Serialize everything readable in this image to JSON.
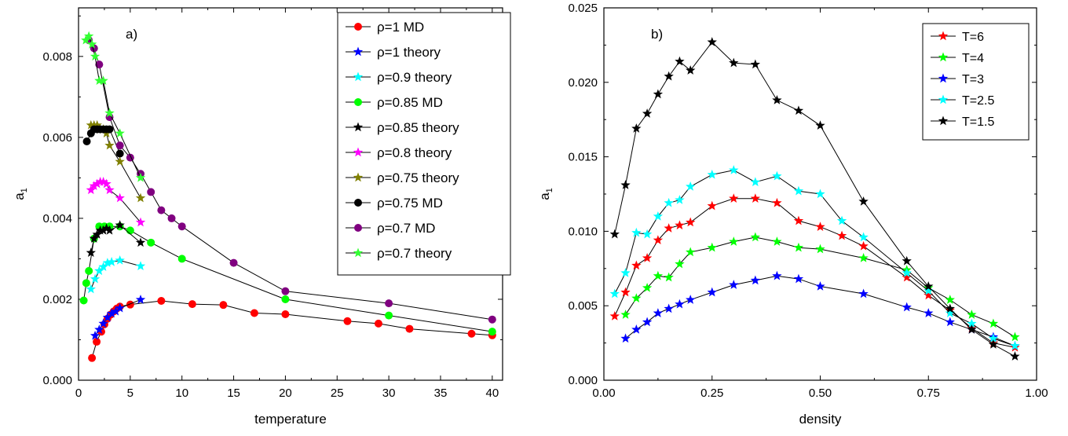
{
  "chart_data": [
    {
      "type": "line",
      "panel_label": "a)",
      "xlabel": "temperature",
      "ylabel_main": "a",
      "ylabel_sub": "1",
      "xlim": [
        0,
        41
      ],
      "ylim": [
        0,
        0.0092
      ],
      "xticks": [
        0,
        5,
        10,
        15,
        20,
        25,
        30,
        35,
        40
      ],
      "xtick_labels": [
        "0",
        "5",
        "10",
        "15",
        "20",
        "25",
        "30",
        "35",
        "40"
      ],
      "yticks": [
        0,
        0.002,
        0.004,
        0.006,
        0.008
      ],
      "ytick_labels": [
        "0.000",
        "0.002",
        "0.004",
        "0.006",
        "0.008"
      ],
      "legend_position": "top-right",
      "series": [
        {
          "name": "ρ=1 MD",
          "color": "#ff0000",
          "marker": "circle",
          "x": [
            1.3,
            1.75,
            2.2,
            2.5,
            2.8,
            3.1,
            3.4,
            3.7,
            4.0,
            5.0,
            8.0,
            11.0,
            14.0,
            17.0,
            20.0,
            26.0,
            29.0,
            32.0,
            38.0,
            40.0
          ],
          "y": [
            0.00055,
            0.00095,
            0.0012,
            0.00138,
            0.00152,
            0.00162,
            0.0017,
            0.00177,
            0.00182,
            0.00187,
            0.00196,
            0.00188,
            0.00186,
            0.00166,
            0.00163,
            0.00146,
            0.0014,
            0.00127,
            0.00115,
            0.00111
          ]
        },
        {
          "name": "ρ=1 theory",
          "color": "#0000ff",
          "marker": "star",
          "x": [
            1.6,
            2.0,
            2.4,
            2.8,
            3.2,
            3.6,
            4.0,
            6.0
          ],
          "y": [
            0.0011,
            0.00125,
            0.0014,
            0.00155,
            0.00165,
            0.0017,
            0.00178,
            0.00199
          ]
        },
        {
          "name": "ρ=0.9 theory",
          "color": "#00ffff",
          "marker": "star",
          "x": [
            1.2,
            1.6,
            2.0,
            2.4,
            2.8,
            3.2,
            4.0,
            6.0
          ],
          "y": [
            0.00225,
            0.0025,
            0.0027,
            0.0028,
            0.0029,
            0.00292,
            0.00296,
            0.00282
          ]
        },
        {
          "name": "ρ=0.85 MD",
          "color": "#00ff00",
          "marker": "circle",
          "x": [
            0.5,
            0.75,
            1.0,
            1.5,
            2.0,
            2.5,
            3.0,
            4.0,
            5.0,
            7.0,
            10.0,
            20.0,
            30.0,
            40.0
          ],
          "y": [
            0.00197,
            0.0024,
            0.0027,
            0.0035,
            0.0038,
            0.0038,
            0.0038,
            0.0038,
            0.0037,
            0.0034,
            0.003,
            0.002,
            0.0016,
            0.0012
          ]
        },
        {
          "name": "ρ=0.85 theory",
          "color": "#000000",
          "marker": "star",
          "x": [
            1.2,
            1.5,
            1.8,
            2.1,
            2.4,
            2.7,
            3.0,
            4.0,
            6.0
          ],
          "y": [
            0.00315,
            0.0035,
            0.0036,
            0.0037,
            0.0037,
            0.00375,
            0.0037,
            0.00383,
            0.0034
          ]
        },
        {
          "name": "ρ=0.8 theory",
          "color": "#ff00ff",
          "marker": "star",
          "x": [
            1.2,
            1.5,
            1.8,
            2.1,
            2.4,
            2.7,
            3.0,
            4.0,
            6.0
          ],
          "y": [
            0.0047,
            0.0048,
            0.00485,
            0.0049,
            0.0049,
            0.00485,
            0.0047,
            0.0045,
            0.0039
          ]
        },
        {
          "name": "ρ=0.75 theory",
          "color": "#808000",
          "marker": "star",
          "x": [
            1.2,
            1.5,
            1.8,
            2.1,
            2.4,
            2.7,
            3.0,
            4.0,
            6.0
          ],
          "y": [
            0.0063,
            0.0063,
            0.0063,
            0.0062,
            0.0062,
            0.0061,
            0.0058,
            0.0054,
            0.0045
          ]
        },
        {
          "name": "ρ=0.75 MD",
          "color": "#000000",
          "marker": "circle",
          "x": [
            0.8,
            1.2,
            1.5,
            1.8,
            2.1,
            2.4,
            2.7,
            3.0,
            4.0
          ],
          "y": [
            0.0059,
            0.0061,
            0.0062,
            0.0062,
            0.0062,
            0.0062,
            0.0062,
            0.0062,
            0.0056
          ]
        },
        {
          "name": "ρ=0.7 MD",
          "color": "#800080",
          "marker": "circle",
          "x": [
            1.0,
            1.5,
            2.0,
            3.0,
            4.0,
            5.0,
            6.0,
            7.0,
            8.0,
            9.0,
            10.0,
            15.0,
            20.0,
            30.0,
            40.0
          ],
          "y": [
            0.0084,
            0.0082,
            0.0078,
            0.0065,
            0.0058,
            0.0055,
            0.0051,
            0.00465,
            0.0042,
            0.004,
            0.0038,
            0.0029,
            0.0022,
            0.0019,
            0.0015
          ]
        },
        {
          "name": "ρ=0.7 theory",
          "color": "#33ff33",
          "marker": "star",
          "x": [
            0.7,
            1.0,
            1.3,
            1.6,
            2.0,
            2.4,
            3.0,
            4.0,
            6.0
          ],
          "y": [
            0.0084,
            0.0085,
            0.0083,
            0.008,
            0.0074,
            0.0074,
            0.0066,
            0.0061,
            0.005
          ]
        }
      ]
    },
    {
      "type": "line",
      "panel_label": "b)",
      "xlabel": "density",
      "ylabel_main": "a",
      "ylabel_sub": "1",
      "xlim": [
        0,
        1.0
      ],
      "ylim": [
        0,
        0.025
      ],
      "xticks": [
        0,
        0.25,
        0.5,
        0.75,
        1.0
      ],
      "xtick_labels": [
        "0.00",
        "0.25",
        "0.50",
        "0.75",
        "1.00"
      ],
      "yticks": [
        0,
        0.005,
        0.01,
        0.015,
        0.02,
        0.025
      ],
      "ytick_labels": [
        "0.000",
        "0.005",
        "0.010",
        "0.015",
        "0.020",
        "0.025"
      ],
      "legend_position": "top-right",
      "series": [
        {
          "name": "T=6",
          "color": "#ff0000",
          "marker": "star",
          "x": [
            0.025,
            0.05,
            0.075,
            0.1,
            0.125,
            0.15,
            0.175,
            0.2,
            0.25,
            0.3,
            0.35,
            0.4,
            0.45,
            0.5,
            0.55,
            0.6,
            0.7,
            0.75,
            0.8,
            0.85,
            0.9,
            0.95
          ],
          "y": [
            0.0043,
            0.0059,
            0.0077,
            0.0082,
            0.0094,
            0.0102,
            0.0104,
            0.0106,
            0.0117,
            0.0122,
            0.0122,
            0.0119,
            0.0107,
            0.0103,
            0.0097,
            0.009,
            0.0069,
            0.0057,
            0.0047,
            0.0035,
            0.0025,
            0.0022
          ]
        },
        {
          "name": "T=4",
          "color": "#00ff00",
          "marker": "star",
          "x": [
            0.05,
            0.075,
            0.1,
            0.125,
            0.15,
            0.175,
            0.2,
            0.25,
            0.3,
            0.35,
            0.4,
            0.45,
            0.5,
            0.6,
            0.7,
            0.75,
            0.8,
            0.85,
            0.9,
            0.95
          ],
          "y": [
            0.0044,
            0.0055,
            0.0062,
            0.007,
            0.0069,
            0.0078,
            0.0086,
            0.0089,
            0.0093,
            0.0096,
            0.0093,
            0.0089,
            0.0088,
            0.0082,
            0.0074,
            0.0062,
            0.0054,
            0.0044,
            0.0038,
            0.0029
          ]
        },
        {
          "name": "T=3",
          "color": "#0000ff",
          "marker": "star",
          "x": [
            0.05,
            0.075,
            0.1,
            0.125,
            0.15,
            0.175,
            0.2,
            0.25,
            0.3,
            0.35,
            0.4,
            0.45,
            0.5,
            0.6,
            0.7,
            0.75,
            0.8,
            0.85,
            0.9,
            0.95
          ],
          "y": [
            0.0028,
            0.0034,
            0.0039,
            0.0045,
            0.0048,
            0.0051,
            0.0054,
            0.0059,
            0.0064,
            0.0067,
            0.007,
            0.0068,
            0.0063,
            0.0058,
            0.0049,
            0.0045,
            0.0039,
            0.0034,
            0.0029,
            0.0023
          ]
        },
        {
          "name": "T=2.5",
          "color": "#00ffff",
          "marker": "star",
          "x": [
            0.025,
            0.05,
            0.075,
            0.1,
            0.125,
            0.15,
            0.175,
            0.2,
            0.25,
            0.3,
            0.35,
            0.4,
            0.45,
            0.5,
            0.55,
            0.6,
            0.7,
            0.75,
            0.8,
            0.85,
            0.9,
            0.95
          ],
          "y": [
            0.0058,
            0.0072,
            0.0099,
            0.0098,
            0.011,
            0.0119,
            0.0121,
            0.013,
            0.0138,
            0.0141,
            0.0133,
            0.0137,
            0.0127,
            0.0125,
            0.0107,
            0.0096,
            0.0072,
            0.006,
            0.0045,
            0.0038,
            0.0028,
            0.0023
          ]
        },
        {
          "name": "T=1.5",
          "color": "#000000",
          "marker": "star",
          "x": [
            0.025,
            0.05,
            0.075,
            0.1,
            0.125,
            0.15,
            0.175,
            0.2,
            0.25,
            0.3,
            0.35,
            0.4,
            0.45,
            0.5,
            0.6,
            0.7,
            0.75,
            0.8,
            0.85,
            0.9,
            0.95
          ],
          "y": [
            0.0098,
            0.0131,
            0.0169,
            0.0179,
            0.0192,
            0.0204,
            0.0214,
            0.0208,
            0.0227,
            0.0213,
            0.0212,
            0.0188,
            0.0181,
            0.0171,
            0.012,
            0.008,
            0.0063,
            0.0048,
            0.0034,
            0.0024,
            0.0016
          ]
        }
      ]
    }
  ]
}
